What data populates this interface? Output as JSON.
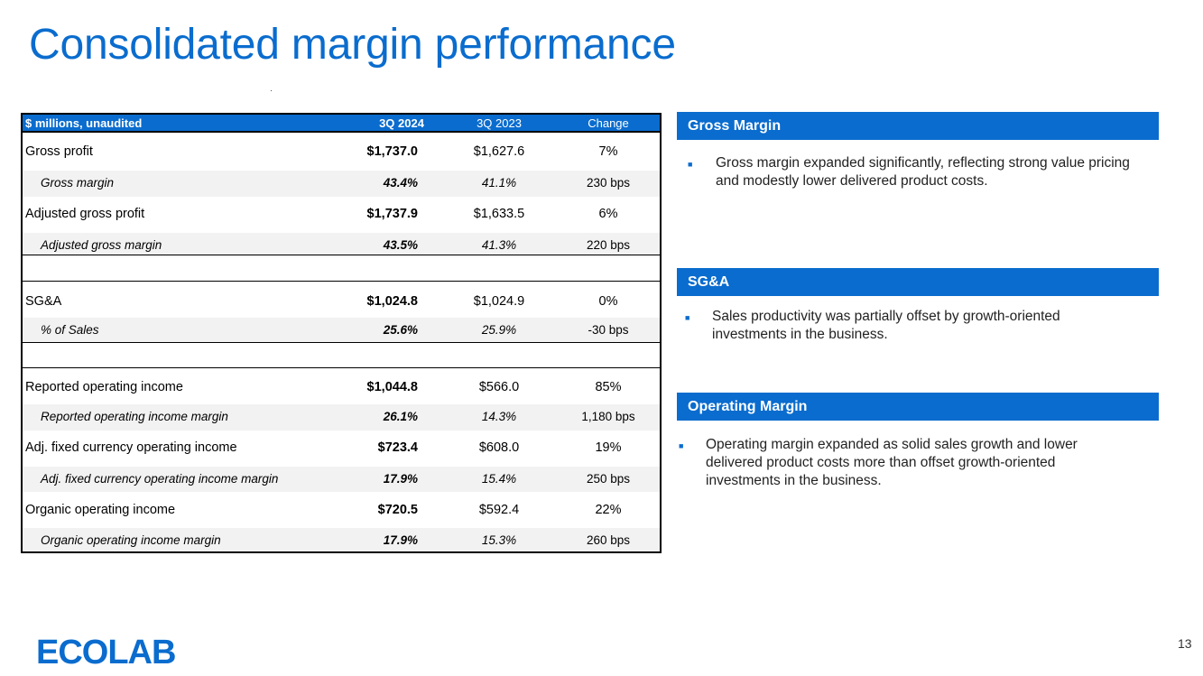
{
  "title": "Consolidated margin performance",
  "table": {
    "headers": {
      "label": "$ millions, unaudited",
      "q3_2024": "3Q 2024",
      "q3_2023": "3Q 2023",
      "change": "Change"
    },
    "rows": [
      {
        "label": "Gross profit",
        "q3_2024": "$1,737.0",
        "q3_2023": "$1,627.6",
        "change": "7%"
      },
      {
        "label": "Gross margin",
        "q3_2024": "43.4%",
        "q3_2023": "41.1%",
        "change": "230 bps"
      },
      {
        "label": "Adjusted gross profit",
        "q3_2024": "$1,737.9",
        "q3_2023": "$1,633.5",
        "change": "6%"
      },
      {
        "label": "Adjusted gross margin",
        "q3_2024": "43.5%",
        "q3_2023": "41.3%",
        "change": "220 bps"
      },
      {
        "label": "SG&A",
        "q3_2024": "$1,024.8",
        "q3_2023": "$1,024.9",
        "change": "0%"
      },
      {
        "label": "% of Sales",
        "q3_2024": "25.6%",
        "q3_2023": "25.9%",
        "change": "-30 bps"
      },
      {
        "label": "Reported operating income",
        "q3_2024": "$1,044.8",
        "q3_2023": "$566.0",
        "change": "85%"
      },
      {
        "label": "Reported operating income margin",
        "q3_2024": "26.1%",
        "q3_2023": "14.3%",
        "change": "1,180 bps"
      },
      {
        "label": "Adj. fixed currency operating income",
        "q3_2024": "$723.4",
        "q3_2023": "$608.0",
        "change": "19%"
      },
      {
        "label": "Adj. fixed currency operating income margin",
        "q3_2024": "17.9%",
        "q3_2023": "15.4%",
        "change": "250 bps"
      },
      {
        "label": "Organic operating income",
        "q3_2024": "$720.5",
        "q3_2023": "$592.4",
        "change": "22%"
      },
      {
        "label": "Organic operating income margin",
        "q3_2024": "17.9%",
        "q3_2023": "15.3%",
        "change": "260 bps"
      }
    ]
  },
  "commentary": [
    {
      "heading": "Gross Margin",
      "bullet": "Gross margin expanded significantly, reflecting strong value pricing and modestly lower delivered product costs."
    },
    {
      "heading": "SG&A",
      "bullet": "Sales productivity was partially offset by growth-oriented investments in the business."
    },
    {
      "heading": "Operating Margin",
      "bullet": "Operating margin expanded as solid sales growth and lower delivered product costs more than offset growth-oriented investments in the business."
    }
  ],
  "footer": {
    "logo_text": "ECOLAB",
    "page_number": "13"
  },
  "colors": {
    "brand_blue": "#0a6cce",
    "row_shade": "#f2f2f2"
  }
}
